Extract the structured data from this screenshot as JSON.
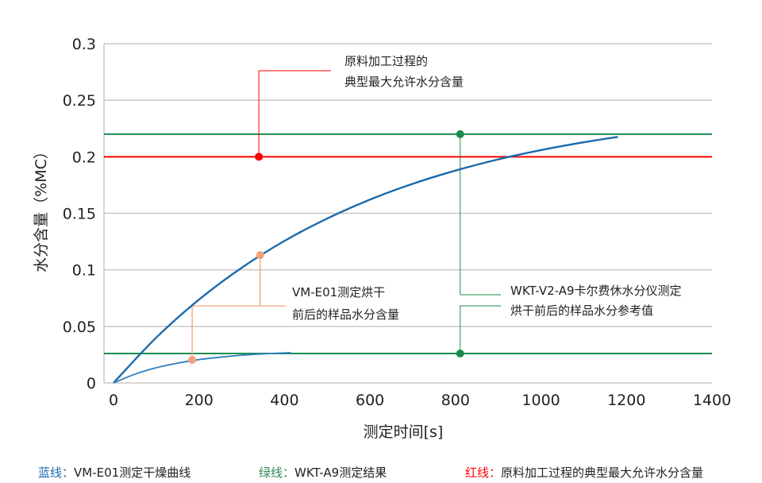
{
  "chart_data": {
    "type": "line",
    "xlabel": "测定时间[s]",
    "ylabel": "水分含量（%MC）",
    "xlim": [
      0,
      1400
    ],
    "ylim": [
      0,
      0.3
    ],
    "xticks": [
      "0",
      "200",
      "400",
      "600",
      "800",
      "1000",
      "1200",
      "1400"
    ],
    "yticks": [
      "0",
      "0.05",
      "0.1",
      "0.15",
      "0.2",
      "0.25",
      "0.3"
    ],
    "grid": "horizontal",
    "series": [
      {
        "key": "blue-upper",
        "color": "#1a6aad",
        "x": [
          0,
          100,
          200,
          300,
          400,
          500,
          600,
          700,
          800,
          900,
          1000,
          1100,
          1180
        ],
        "y": [
          0,
          0.0401,
          0.0737,
          0.1019,
          0.1256,
          0.1454,
          0.1621,
          0.1761,
          0.1878,
          0.1977,
          0.2059,
          0.2128,
          0.2176
        ]
      },
      {
        "key": "blue-lower",
        "color": "#2e7fc0",
        "x": [
          0,
          50,
          100,
          150,
          200,
          250,
          300,
          350,
          415
        ],
        "y": [
          0,
          0.0077,
          0.0134,
          0.0175,
          0.0206,
          0.0228,
          0.0245,
          0.0257,
          0.0268
        ]
      }
    ],
    "hlines": [
      {
        "key": "green-upper",
        "y": 0.22,
        "color": "#1a8c4e"
      },
      {
        "key": "green-lower",
        "y": 0.026,
        "color": "#1a8c4e"
      },
      {
        "key": "red",
        "y": 0.2,
        "color": "#ff0000"
      }
    ],
    "points": [
      {
        "key": "red-point",
        "x": 340,
        "y": 0.2,
        "color": "#ff0000"
      },
      {
        "key": "salmon-upper-point",
        "x": 343,
        "y": 0.113,
        "color": "#f4a07a"
      },
      {
        "key": "salmon-lower-point",
        "x": 184,
        "y": 0.0204,
        "color": "#f4a07a"
      },
      {
        "key": "green-upper-point",
        "x": 811,
        "y": 0.22,
        "color": "#1a8c4e"
      },
      {
        "key": "green-lower-point",
        "x": 811,
        "y": 0.026,
        "color": "#1a8c4e"
      }
    ],
    "annotations": {
      "red": [
        "原料加工过程的",
        "典型最大允许水分含量"
      ],
      "salmon": [
        "VM-E01测定烘干",
        "前后的样品水分含量"
      ],
      "green": [
        "WKT-V2-A9卡尔费休水分仪测定",
        "烘干前后的样品水分参考值"
      ]
    }
  },
  "legend": [
    {
      "prefix": "蓝线：",
      "text": "VM-E01测定干燥曲线",
      "color": "#1a6aad"
    },
    {
      "prefix": "绿线：",
      "text": "WKT-A9测定结果",
      "color": "#2e8b57"
    },
    {
      "prefix": "红线：",
      "text": "原料加工过程的典型最大允许水分含量",
      "color": "#ff0000"
    }
  ]
}
